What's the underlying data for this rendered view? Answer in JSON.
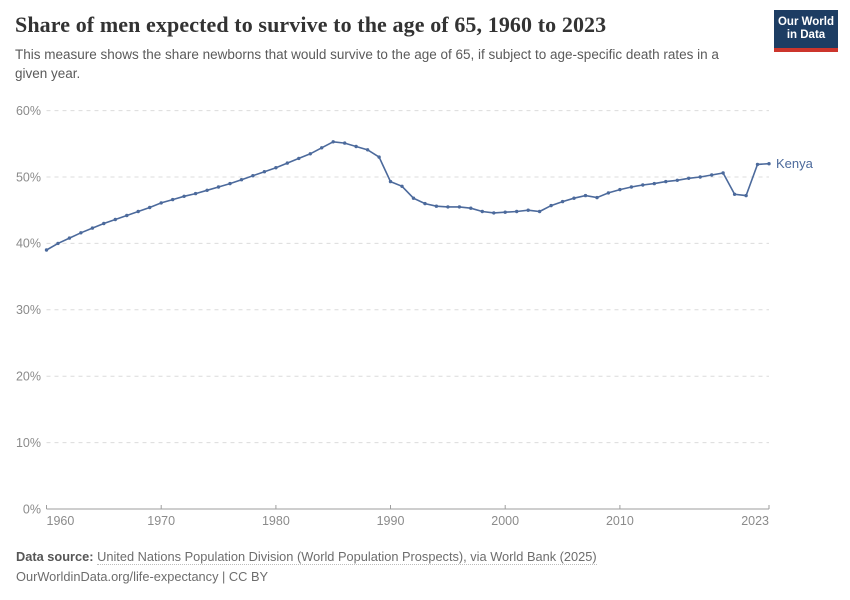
{
  "header": {
    "title": "Share of men expected to survive to the age of 65, 1960 to 2023",
    "subtitle": "This measure shows the share newborns that would survive to the age of 65, if subject to age-specific death rates in a given year.",
    "logo": {
      "line1": "Our World",
      "line2": "in Data",
      "bg_color": "#1d3d63",
      "bar_color": "#cc352c"
    }
  },
  "chart_data": {
    "type": "line",
    "title": "Share of men expected to survive to the age of 65, 1960 to 2023",
    "xlabel": "",
    "ylabel": "",
    "ylim": [
      0,
      60
    ],
    "grid": "horizontal-dashed",
    "legend_position": "end-of-line-label",
    "yticks": [
      {
        "value": 0,
        "label": "0%"
      },
      {
        "value": 10,
        "label": "10%"
      },
      {
        "value": 20,
        "label": "20%"
      },
      {
        "value": 30,
        "label": "30%"
      },
      {
        "value": 40,
        "label": "40%"
      },
      {
        "value": 50,
        "label": "50%"
      },
      {
        "value": 60,
        "label": "60%"
      }
    ],
    "xticks": [
      {
        "value": 1960,
        "label": "1960"
      },
      {
        "value": 1970,
        "label": "1970"
      },
      {
        "value": 1980,
        "label": "1980"
      },
      {
        "value": 1990,
        "label": "1990"
      },
      {
        "value": 2000,
        "label": "2000"
      },
      {
        "value": 2010,
        "label": "2010"
      },
      {
        "value": 2023,
        "label": "2023"
      }
    ],
    "x": [
      1960,
      1961,
      1962,
      1963,
      1964,
      1965,
      1966,
      1967,
      1968,
      1969,
      1970,
      1971,
      1972,
      1973,
      1974,
      1975,
      1976,
      1977,
      1978,
      1979,
      1980,
      1981,
      1982,
      1983,
      1984,
      1985,
      1986,
      1987,
      1988,
      1989,
      1990,
      1991,
      1992,
      1993,
      1994,
      1995,
      1996,
      1997,
      1998,
      1999,
      2000,
      2001,
      2002,
      2003,
      2004,
      2005,
      2006,
      2007,
      2008,
      2009,
      2010,
      2011,
      2012,
      2013,
      2014,
      2015,
      2016,
      2017,
      2018,
      2019,
      2020,
      2021,
      2022,
      2023
    ],
    "series": [
      {
        "name": "Kenya",
        "color": "#4c6a9c",
        "values": [
          39.0,
          40.0,
          40.8,
          41.6,
          42.3,
          43.0,
          43.6,
          44.2,
          44.8,
          45.4,
          46.1,
          46.6,
          47.1,
          47.5,
          48.0,
          48.5,
          49.0,
          49.6,
          50.2,
          50.8,
          51.4,
          52.1,
          52.8,
          53.5,
          54.4,
          55.3,
          55.1,
          54.6,
          54.1,
          53.0,
          49.3,
          48.6,
          46.8,
          46.0,
          45.6,
          45.5,
          45.5,
          45.3,
          44.8,
          44.6,
          44.7,
          44.8,
          45.0,
          44.8,
          45.7,
          46.3,
          46.8,
          47.2,
          46.9,
          47.6,
          48.1,
          48.5,
          48.8,
          49.0,
          49.3,
          49.5,
          49.8,
          50.0,
          50.3,
          50.6,
          47.4,
          47.2,
          51.9,
          52.0
        ]
      }
    ]
  },
  "footer": {
    "source_label": "Data source:",
    "source_text": "United Nations Population Division (World Population Prospects), via World Bank (2025)",
    "license_line": "OurWorldinData.org/life-expectancy | CC BY"
  }
}
